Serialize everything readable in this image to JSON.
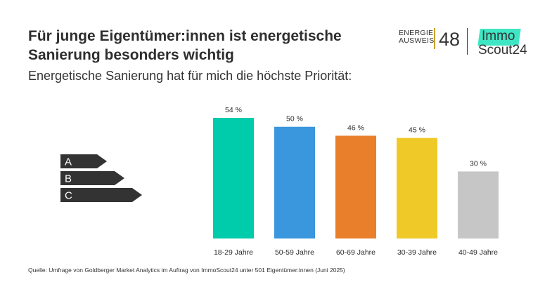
{
  "title_lines": [
    "Für junge Eigentümer:innen ist energetische",
    "Sanierung besonders wichtig"
  ],
  "subtitle": "Energetische Sanierung hat für mich die höchste Priorität:",
  "logo": {
    "energie_line1": "ENERGIE",
    "energie_line2": "AUSWEIS",
    "number": "48",
    "brand_top": "Immo",
    "brand_bottom": "Scout24",
    "brand_accent": "#3ee6c4",
    "gold_accent": "#c9a227"
  },
  "energy_labels": {
    "items": [
      "A",
      "B",
      "C"
    ],
    "color": "#333333"
  },
  "chart_data": {
    "type": "bar",
    "title": "Energetische Sanierung hat für mich die höchste Priorität:",
    "categories": [
      "18-29 Jahre",
      "50-59 Jahre",
      "60-69 Jahre",
      "30-39 Jahre",
      "40-49 Jahre"
    ],
    "values": [
      54,
      50,
      46,
      45,
      30
    ],
    "value_labels": [
      "54 %",
      "50 %",
      "46 %",
      "45 %",
      "30 %"
    ],
    "colors": [
      "#00cbab",
      "#3a96dd",
      "#ea7f2b",
      "#efc928",
      "#c6c6c6"
    ],
    "unit": "%",
    "ylim": [
      0,
      54
    ],
    "xlabel": "",
    "ylabel": "",
    "grid": false
  },
  "source": "Quelle: Umfrage von Goldberger Market Analytics im Auftrag von ImmoScout24 unter 501 Eigentümer:innen (Juni 2025)"
}
